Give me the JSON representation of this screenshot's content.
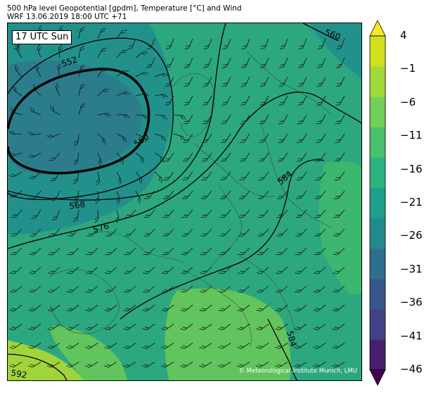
{
  "title_line1": "500 hPa level Geopotential [gpdm], Temperature [°C] and Wind",
  "title_line2": "WRF 13.06.2019 18:00 UTC +71",
  "time_label": "17 UTC Sun",
  "copyright": "© Meteorological Institute Munich, LMU",
  "contours": [
    {
      "label": "552",
      "value": 552
    },
    {
      "label": "560",
      "value": 560
    },
    {
      "label": "568",
      "value": 568
    },
    {
      "label": "576",
      "value": 576
    },
    {
      "label": "584",
      "value": 584
    },
    {
      "label": "592",
      "value": 592
    }
  ],
  "colorbar": {
    "ticks": [
      "4",
      "−1",
      "−6",
      "−11",
      "−16",
      "−21",
      "−26",
      "−31",
      "−36",
      "−41",
      "−46"
    ],
    "colors": [
      "#440154",
      "#46206f",
      "#424086",
      "#39568c",
      "#2e6e8e",
      "#218b8c",
      "#1f9e89",
      "#2db27d",
      "#4ac16d",
      "#73d056",
      "#a0da39",
      "#d0e11c",
      "#fde725"
    ]
  },
  "field_colors": {
    "cold_core": "#2b7d8c",
    "cold": "#22918b",
    "mid": "#2da77f",
    "warm": "#3db66f",
    "warmer": "#62c45c",
    "warmest": "#9fd53a"
  }
}
